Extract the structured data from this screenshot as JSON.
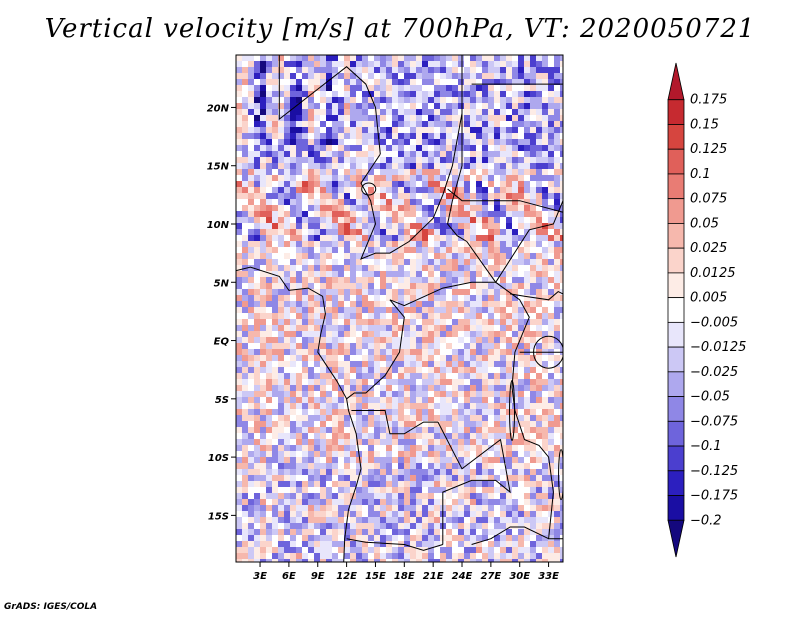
{
  "title": "Vertical velocity [m/s] at 700hPa, VT: 2020050721",
  "credit": "GrADS: IGES/COLA",
  "map": {
    "lat_range": [
      -19,
      24.5
    ],
    "lon_range": [
      0.5,
      34.5
    ],
    "lat_ticks": [
      {
        "value": 20,
        "label": "20N"
      },
      {
        "value": 15,
        "label": "15N"
      },
      {
        "value": 10,
        "label": "10N"
      },
      {
        "value": 5,
        "label": "5N"
      },
      {
        "value": 0,
        "label": "EQ"
      },
      {
        "value": -5,
        "label": "5S"
      },
      {
        "value": -10,
        "label": "10S"
      },
      {
        "value": -15,
        "label": "15S"
      }
    ],
    "lon_ticks": [
      {
        "value": 3,
        "label": "3E"
      },
      {
        "value": 6,
        "label": "6E"
      },
      {
        "value": 9,
        "label": "9E"
      },
      {
        "value": 12,
        "label": "12E"
      },
      {
        "value": 15,
        "label": "15E"
      },
      {
        "value": 18,
        "label": "18E"
      },
      {
        "value": 21,
        "label": "21E"
      },
      {
        "value": 24,
        "label": "24E"
      },
      {
        "value": 27,
        "label": "27E"
      },
      {
        "value": 30,
        "label": "30E"
      },
      {
        "value": 33,
        "label": "33E"
      }
    ]
  },
  "colorbar": {
    "levels": [
      "0.175",
      "0.15",
      "0.125",
      "0.1",
      "0.075",
      "0.05",
      "0.025",
      "0.0125",
      "0.005",
      "−0.005",
      "−0.0125",
      "−0.025",
      "−0.05",
      "−0.075",
      "−0.1",
      "−0.125",
      "−0.175",
      "−0.2"
    ],
    "colors": [
      "#b2182b",
      "#c62a30",
      "#d6453f",
      "#e0605a",
      "#e97c74",
      "#f09a90",
      "#f6b8ad",
      "#fbd4cb",
      "#fdece6",
      "#ffffff",
      "#e8e6fb",
      "#ccc8f5",
      "#aea8ee",
      "#8f87e6",
      "#6e64dc",
      "#4b3fcf",
      "#2c1fbf",
      "#1a0ea3",
      "#14087e"
    ]
  }
}
